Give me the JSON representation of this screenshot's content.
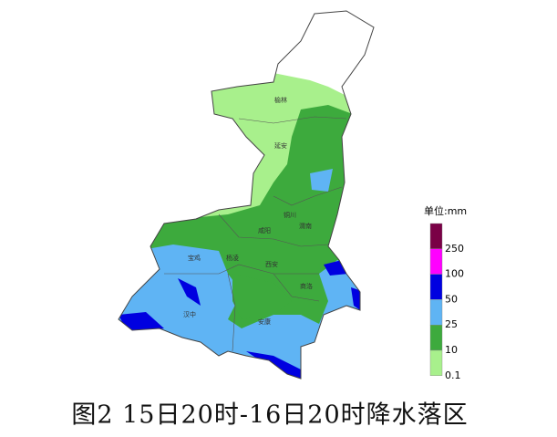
{
  "map": {
    "cities": [
      "榆林",
      "延安",
      "铜川",
      "渭南",
      "咸阳",
      "宝鸡",
      "杨凌",
      "西安",
      "商洛",
      "汉中",
      "安康"
    ],
    "legend": {
      "title": "单位:mm",
      "levels": [
        {
          "value": 250,
          "color": "#7a0046"
        },
        {
          "value": 100,
          "color": "#ff00ff"
        },
        {
          "value": 50,
          "color": "#0000e0"
        },
        {
          "value": 25,
          "color": "#5fb4f4"
        },
        {
          "value": 10,
          "color": "#3daa3d"
        },
        {
          "value": 0.1,
          "color": "#a8f08c"
        }
      ]
    },
    "caption": "图2 15日20时-16日20时降水落区"
  }
}
